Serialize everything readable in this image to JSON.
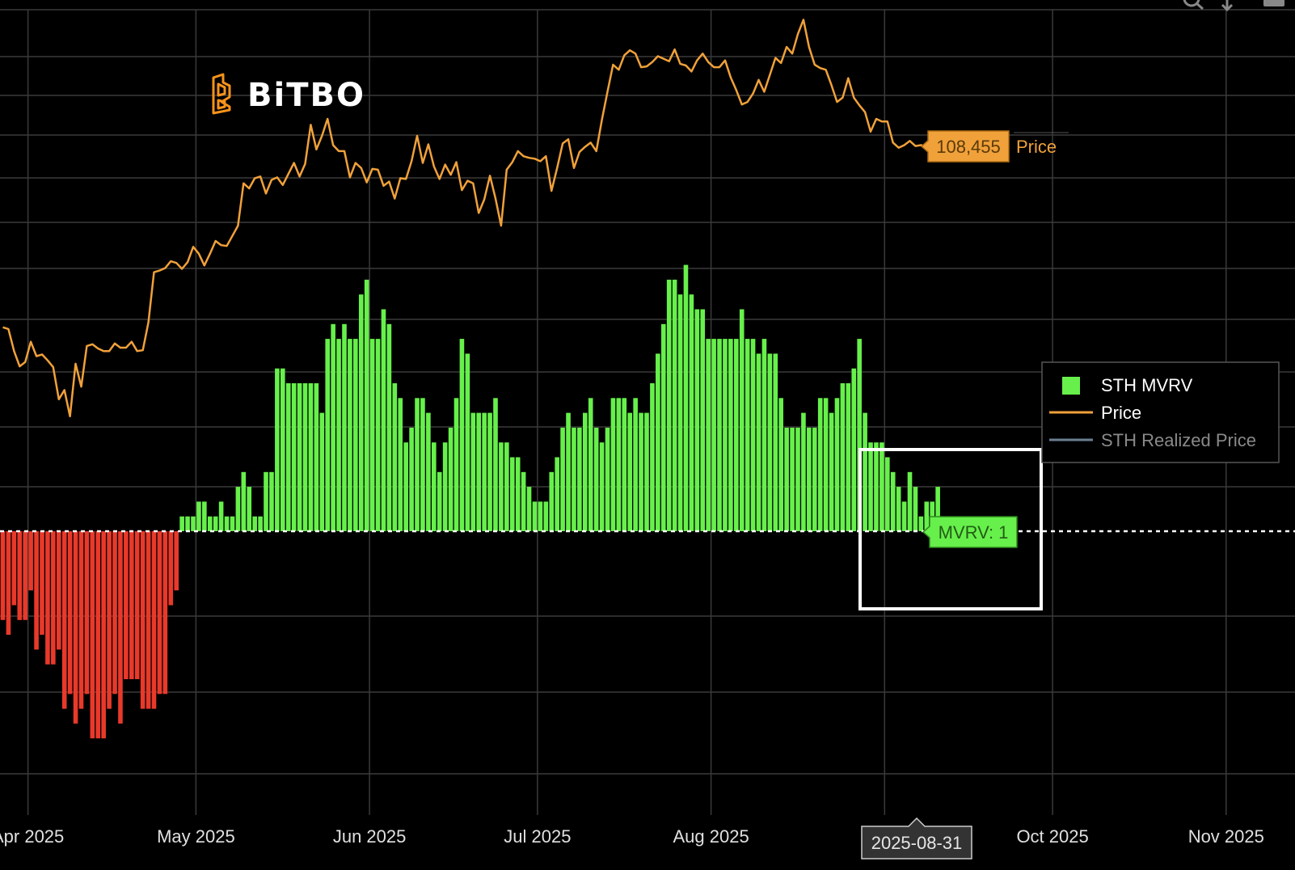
{
  "logo": {
    "text": "BiTBO",
    "color": "#f7931a"
  },
  "colors": {
    "background": "#000000",
    "grid": "#3a3a3a",
    "price": "#f0a13a",
    "positive_bar": "#67f04b",
    "negative_bar": "#e8392a",
    "realized_price": "#6b7f93",
    "tooltip_price_bg": "#f0a13a",
    "tooltip_mvrv_bg": "#67f04b"
  },
  "legend": {
    "items": [
      {
        "label": "STH MVRV",
        "symbol": "square",
        "color": "#67f04b"
      },
      {
        "label": "Price",
        "symbol": "line",
        "color": "#f0a13a"
      },
      {
        "label": "STH Realized Price",
        "symbol": "line",
        "color": "#6b7f93",
        "muted": true
      }
    ]
  },
  "tooltips": {
    "price": {
      "value": "108,455",
      "label": "Price"
    },
    "mvrv": {
      "label": "MVRV: 1"
    },
    "date": {
      "label": "2025-08-31"
    }
  },
  "icons": [
    "zoom-icon",
    "pan-icon",
    "menu-icon"
  ],
  "chart_data": {
    "type": "bar",
    "x_axis": {
      "ticks": [
        {
          "date": "2025-04-01",
          "label": "Apr 2025"
        },
        {
          "date": "2025-05-01",
          "label": "May 2025"
        },
        {
          "date": "2025-06-01",
          "label": "Jun 2025"
        },
        {
          "date": "2025-07-01",
          "label": "Jul 2025"
        },
        {
          "date": "2025-08-01",
          "label": "Aug 2025"
        },
        {
          "date": "2025-09-01",
          "label": ""
        },
        {
          "date": "2025-10-01",
          "label": "Oct 2025"
        },
        {
          "date": "2025-11-01",
          "label": "Nov 2025"
        }
      ],
      "range": [
        "2025-03-27",
        "2025-11-02"
      ]
    },
    "grid": true,
    "legend_position": "right",
    "mvrv_baseline": 1,
    "series": [
      {
        "name": "STH MVRV",
        "start_date": "2025-03-27",
        "values": [
          0.94,
          0.93,
          0.95,
          0.94,
          0.94,
          0.96,
          0.92,
          0.93,
          0.91,
          0.91,
          0.92,
          0.88,
          0.89,
          0.87,
          0.88,
          0.89,
          0.86,
          0.86,
          0.86,
          0.88,
          0.89,
          0.87,
          0.9,
          0.9,
          0.9,
          0.88,
          0.88,
          0.88,
          0.89,
          0.89,
          0.95,
          0.96,
          1.01,
          1.01,
          1.01,
          1.02,
          1.02,
          1.01,
          1.01,
          1.02,
          1.01,
          1.01,
          1.03,
          1.04,
          1.03,
          1.01,
          1.01,
          1.04,
          1.04,
          1.11,
          1.11,
          1.1,
          1.1,
          1.1,
          1.1,
          1.1,
          1.1,
          1.08,
          1.13,
          1.14,
          1.13,
          1.14,
          1.13,
          1.13,
          1.16,
          1.17,
          1.13,
          1.13,
          1.15,
          1.14,
          1.1,
          1.09,
          1.06,
          1.07,
          1.09,
          1.09,
          1.08,
          1.06,
          1.04,
          1.06,
          1.07,
          1.09,
          1.13,
          1.12,
          1.08,
          1.08,
          1.08,
          1.08,
          1.09,
          1.06,
          1.06,
          1.05,
          1.05,
          1.04,
          1.03,
          1.02,
          1.02,
          1.02,
          1.04,
          1.05,
          1.07,
          1.08,
          1.07,
          1.07,
          1.08,
          1.09,
          1.07,
          1.06,
          1.07,
          1.09,
          1.09,
          1.09,
          1.08,
          1.09,
          1.08,
          1.08,
          1.1,
          1.12,
          1.14,
          1.17,
          1.17,
          1.16,
          1.18,
          1.16,
          1.15,
          1.15,
          1.13,
          1.13,
          1.13,
          1.13,
          1.13,
          1.13,
          1.15,
          1.13,
          1.13,
          1.12,
          1.13,
          1.12,
          1.12,
          1.09,
          1.07,
          1.07,
          1.07,
          1.08,
          1.07,
          1.07,
          1.09,
          1.09,
          1.08,
          1.09,
          1.1,
          1.1,
          1.11,
          1.13,
          1.08,
          1.06,
          1.06,
          1.06,
          1.05,
          1.04,
          1.03,
          1.02,
          1.04,
          1.03,
          1.01,
          1.02,
          1.02,
          1.03
        ]
      },
      {
        "name": "Price",
        "start_date": "2025-03-27",
        "values": [
          87000,
          86800,
          84200,
          82400,
          82900,
          85300,
          83600,
          83800,
          83100,
          82300,
          78500,
          79600,
          76500,
          82700,
          80000,
          84800,
          85000,
          84500,
          84200,
          84200,
          85100,
          84600,
          84600,
          85300,
          84200,
          84300,
          87600,
          93500,
          93700,
          94000,
          94800,
          94600,
          93900,
          94700,
          96500,
          95700,
          94300,
          95700,
          97200,
          96700,
          96600,
          97800,
          99000,
          104000,
          103400,
          104600,
          104800,
          102800,
          104400,
          104700,
          103800,
          105100,
          106400,
          104800,
          106300,
          110900,
          108000,
          109600,
          111600,
          108500,
          107800,
          107800,
          104700,
          106400,
          105800,
          104100,
          105700,
          105600,
          103700,
          104200,
          102200,
          104600,
          104500,
          106600,
          109600,
          106400,
          108600,
          106000,
          104500,
          106200,
          105000,
          106500,
          103200,
          104300,
          104000,
          100500,
          102100,
          104900,
          102200,
          99000,
          105600,
          106500,
          107800,
          107200,
          107000,
          106900,
          106600,
          107200,
          103100,
          105800,
          108700,
          109200,
          105800,
          107700,
          108300,
          108800,
          107800,
          111500,
          114800,
          118000,
          117400,
          119100,
          119700,
          119300,
          117700,
          117800,
          118300,
          119000,
          118700,
          118400,
          119800,
          118100,
          117900,
          117200,
          118500,
          119300,
          118300,
          117700,
          117700,
          118500,
          116500,
          115000,
          113300,
          113600,
          114600,
          116200,
          114800,
          116800,
          118800,
          118200,
          120100,
          119300,
          121600,
          123300,
          120100,
          118000,
          117600,
          117400,
          115600,
          113600,
          114100,
          116400,
          114100,
          113200,
          112400,
          110100,
          111600,
          111300,
          111300,
          108800,
          108200,
          108500,
          109000,
          108400,
          108500,
          108300,
          108400,
          108300,
          108455
        ]
      },
      {
        "name": "STH Realized Price",
        "values": []
      }
    ]
  }
}
